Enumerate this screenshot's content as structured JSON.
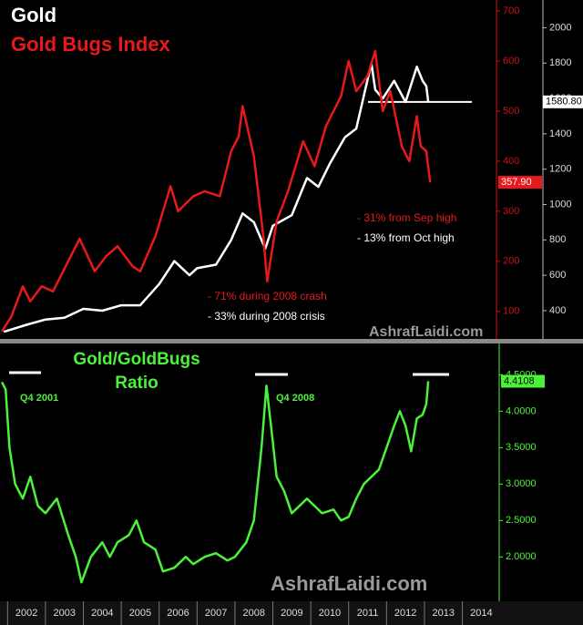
{
  "chart_data": [
    {
      "type": "line",
      "xlim": [
        2001.8,
        2014.9
      ],
      "ylim": [
        45,
        722
      ],
      "yticks": [
        100,
        200,
        300,
        400,
        500,
        600,
        700
      ],
      "y2lim": [
        240,
        2157
      ],
      "y2ticks": [
        400,
        600,
        800,
        1000,
        1200,
        1400,
        1600,
        1800,
        2000
      ],
      "series": [
        {
          "name": "Gold",
          "color": "#ffffff",
          "axis": "y2",
          "x": [
            2001.9,
            2002.5,
            2003.0,
            2003.5,
            2004.0,
            2004.5,
            2005.0,
            2005.5,
            2006.0,
            2006.4,
            2006.8,
            2007.0,
            2007.5,
            2007.9,
            2008.2,
            2008.5,
            2008.8,
            2009.0,
            2009.5,
            2009.9,
            2010.2,
            2010.5,
            2010.9,
            2011.2,
            2011.6,
            2011.7,
            2011.9,
            2012.2,
            2012.5,
            2012.8,
            2012.95,
            2013.05,
            2013.1
          ],
          "values": [
            280,
            320,
            350,
            360,
            410,
            400,
            430,
            430,
            550,
            680,
            600,
            640,
            660,
            800,
            950,
            900,
            750,
            880,
            940,
            1150,
            1100,
            1230,
            1380,
            1430,
            1800,
            1650,
            1600,
            1700,
            1580,
            1780,
            1700,
            1670,
            1580.8
          ],
          "value_labels": {
            "32": "1580.80"
          }
        },
        {
          "name": "Gold Bugs Index",
          "color": "#e8191b",
          "x": [
            2001.85,
            2002.1,
            2002.4,
            2002.6,
            2002.9,
            2003.2,
            2003.6,
            2003.9,
            2004.3,
            2004.6,
            2004.9,
            2005.3,
            2005.5,
            2005.9,
            2006.3,
            2006.5,
            2006.9,
            2007.2,
            2007.6,
            2007.9,
            2008.1,
            2008.2,
            2008.5,
            2008.75,
            2008.85,
            2009.1,
            2009.4,
            2009.8,
            2010.1,
            2010.4,
            2010.8,
            2011.0,
            2011.2,
            2011.5,
            2011.7,
            2011.9,
            2012.1,
            2012.4,
            2012.6,
            2012.8,
            2012.9,
            2013.05,
            2013.15
          ],
          "values": [
            60,
            90,
            150,
            120,
            150,
            140,
            200,
            245,
            180,
            210,
            230,
            190,
            180,
            250,
            350,
            300,
            330,
            340,
            330,
            420,
            450,
            510,
            410,
            250,
            160,
            280,
            340,
            440,
            390,
            470,
            530,
            600,
            540,
            570,
            620,
            500,
            540,
            430,
            400,
            490,
            430,
            420,
            357.9
          ],
          "value_labels": {
            "42": "357.90"
          }
        }
      ],
      "hlines": [
        {
          "value": 1580.8,
          "axis": "y2"
        }
      ],
      "annotations": [
        {
          "text": "- 31% from Sep high",
          "color": "#e8191b"
        },
        {
          "text": "- 13% from Oct high",
          "color": "#ffffff"
        },
        {
          "text": "- 71% during 2008 crash",
          "color": "#e8191b"
        },
        {
          "text": "- 33% during 2008 crisis",
          "color": "#ffffff"
        }
      ],
      "watermark": "AshrafLaidi.com"
    },
    {
      "type": "line",
      "title": [
        "Gold/GoldBugs",
        "Ratio"
      ],
      "xlim": [
        2001.8,
        2014.9
      ],
      "xticks": [
        2002,
        2003,
        2004,
        2005,
        2006,
        2007,
        2008,
        2009,
        2010,
        2011,
        2012,
        2013,
        2014
      ],
      "ylim": [
        1.39,
        4.93
      ],
      "yticks": [
        {
          "value": 2.0,
          "label": "2.0000"
        },
        {
          "value": 2.5,
          "label": "2.5000"
        },
        {
          "value": 3.0,
          "label": "3.0000"
        },
        {
          "value": 3.5,
          "label": "3.5000"
        },
        {
          "value": 4.0,
          "label": "4.0000"
        },
        {
          "value": 4.5,
          "label": "4.5000"
        }
      ],
      "series": [
        {
          "color": "#4cf23a",
          "x": [
            2001.85,
            2001.95,
            2002.05,
            2002.2,
            2002.4,
            2002.6,
            2002.8,
            2003.0,
            2003.3,
            2003.6,
            2003.8,
            2003.95,
            2004.2,
            2004.5,
            2004.7,
            2004.9,
            2005.2,
            2005.4,
            2005.6,
            2005.9,
            2006.1,
            2006.4,
            2006.7,
            2006.9,
            2007.2,
            2007.5,
            2007.8,
            2008.0,
            2008.3,
            2008.5,
            2008.7,
            2008.83,
            2008.95,
            2009.1,
            2009.3,
            2009.5,
            2009.7,
            2009.9,
            2010.1,
            2010.3,
            2010.6,
            2010.8,
            2011.0,
            2011.2,
            2011.4,
            2011.6,
            2011.8,
            2012.0,
            2012.2,
            2012.35,
            2012.5,
            2012.65,
            2012.8,
            2012.95,
            2013.05,
            2013.1
          ],
          "values": [
            4.4,
            4.3,
            3.5,
            3.0,
            2.8,
            3.1,
            2.7,
            2.6,
            2.8,
            2.3,
            2.0,
            1.65,
            2.0,
            2.2,
            2.0,
            2.2,
            2.3,
            2.5,
            2.2,
            2.1,
            1.8,
            1.85,
            2.0,
            1.9,
            2.0,
            2.05,
            1.95,
            2.0,
            2.2,
            2.5,
            3.5,
            4.35,
            3.8,
            3.1,
            2.9,
            2.6,
            2.7,
            2.8,
            2.7,
            2.6,
            2.65,
            2.5,
            2.55,
            2.8,
            3.0,
            3.1,
            3.2,
            3.5,
            3.8,
            4.0,
            3.8,
            3.45,
            3.9,
            3.95,
            4.1,
            4.4108
          ],
          "value_labels": {
            "55": "4.4108"
          }
        }
      ],
      "annotations": [
        {
          "text": "Q4 2001",
          "color": "#4cf23a"
        },
        {
          "text": "Q4 2008",
          "color": "#4cf23a"
        }
      ],
      "watermark": "AshrafLaidi.com"
    }
  ]
}
